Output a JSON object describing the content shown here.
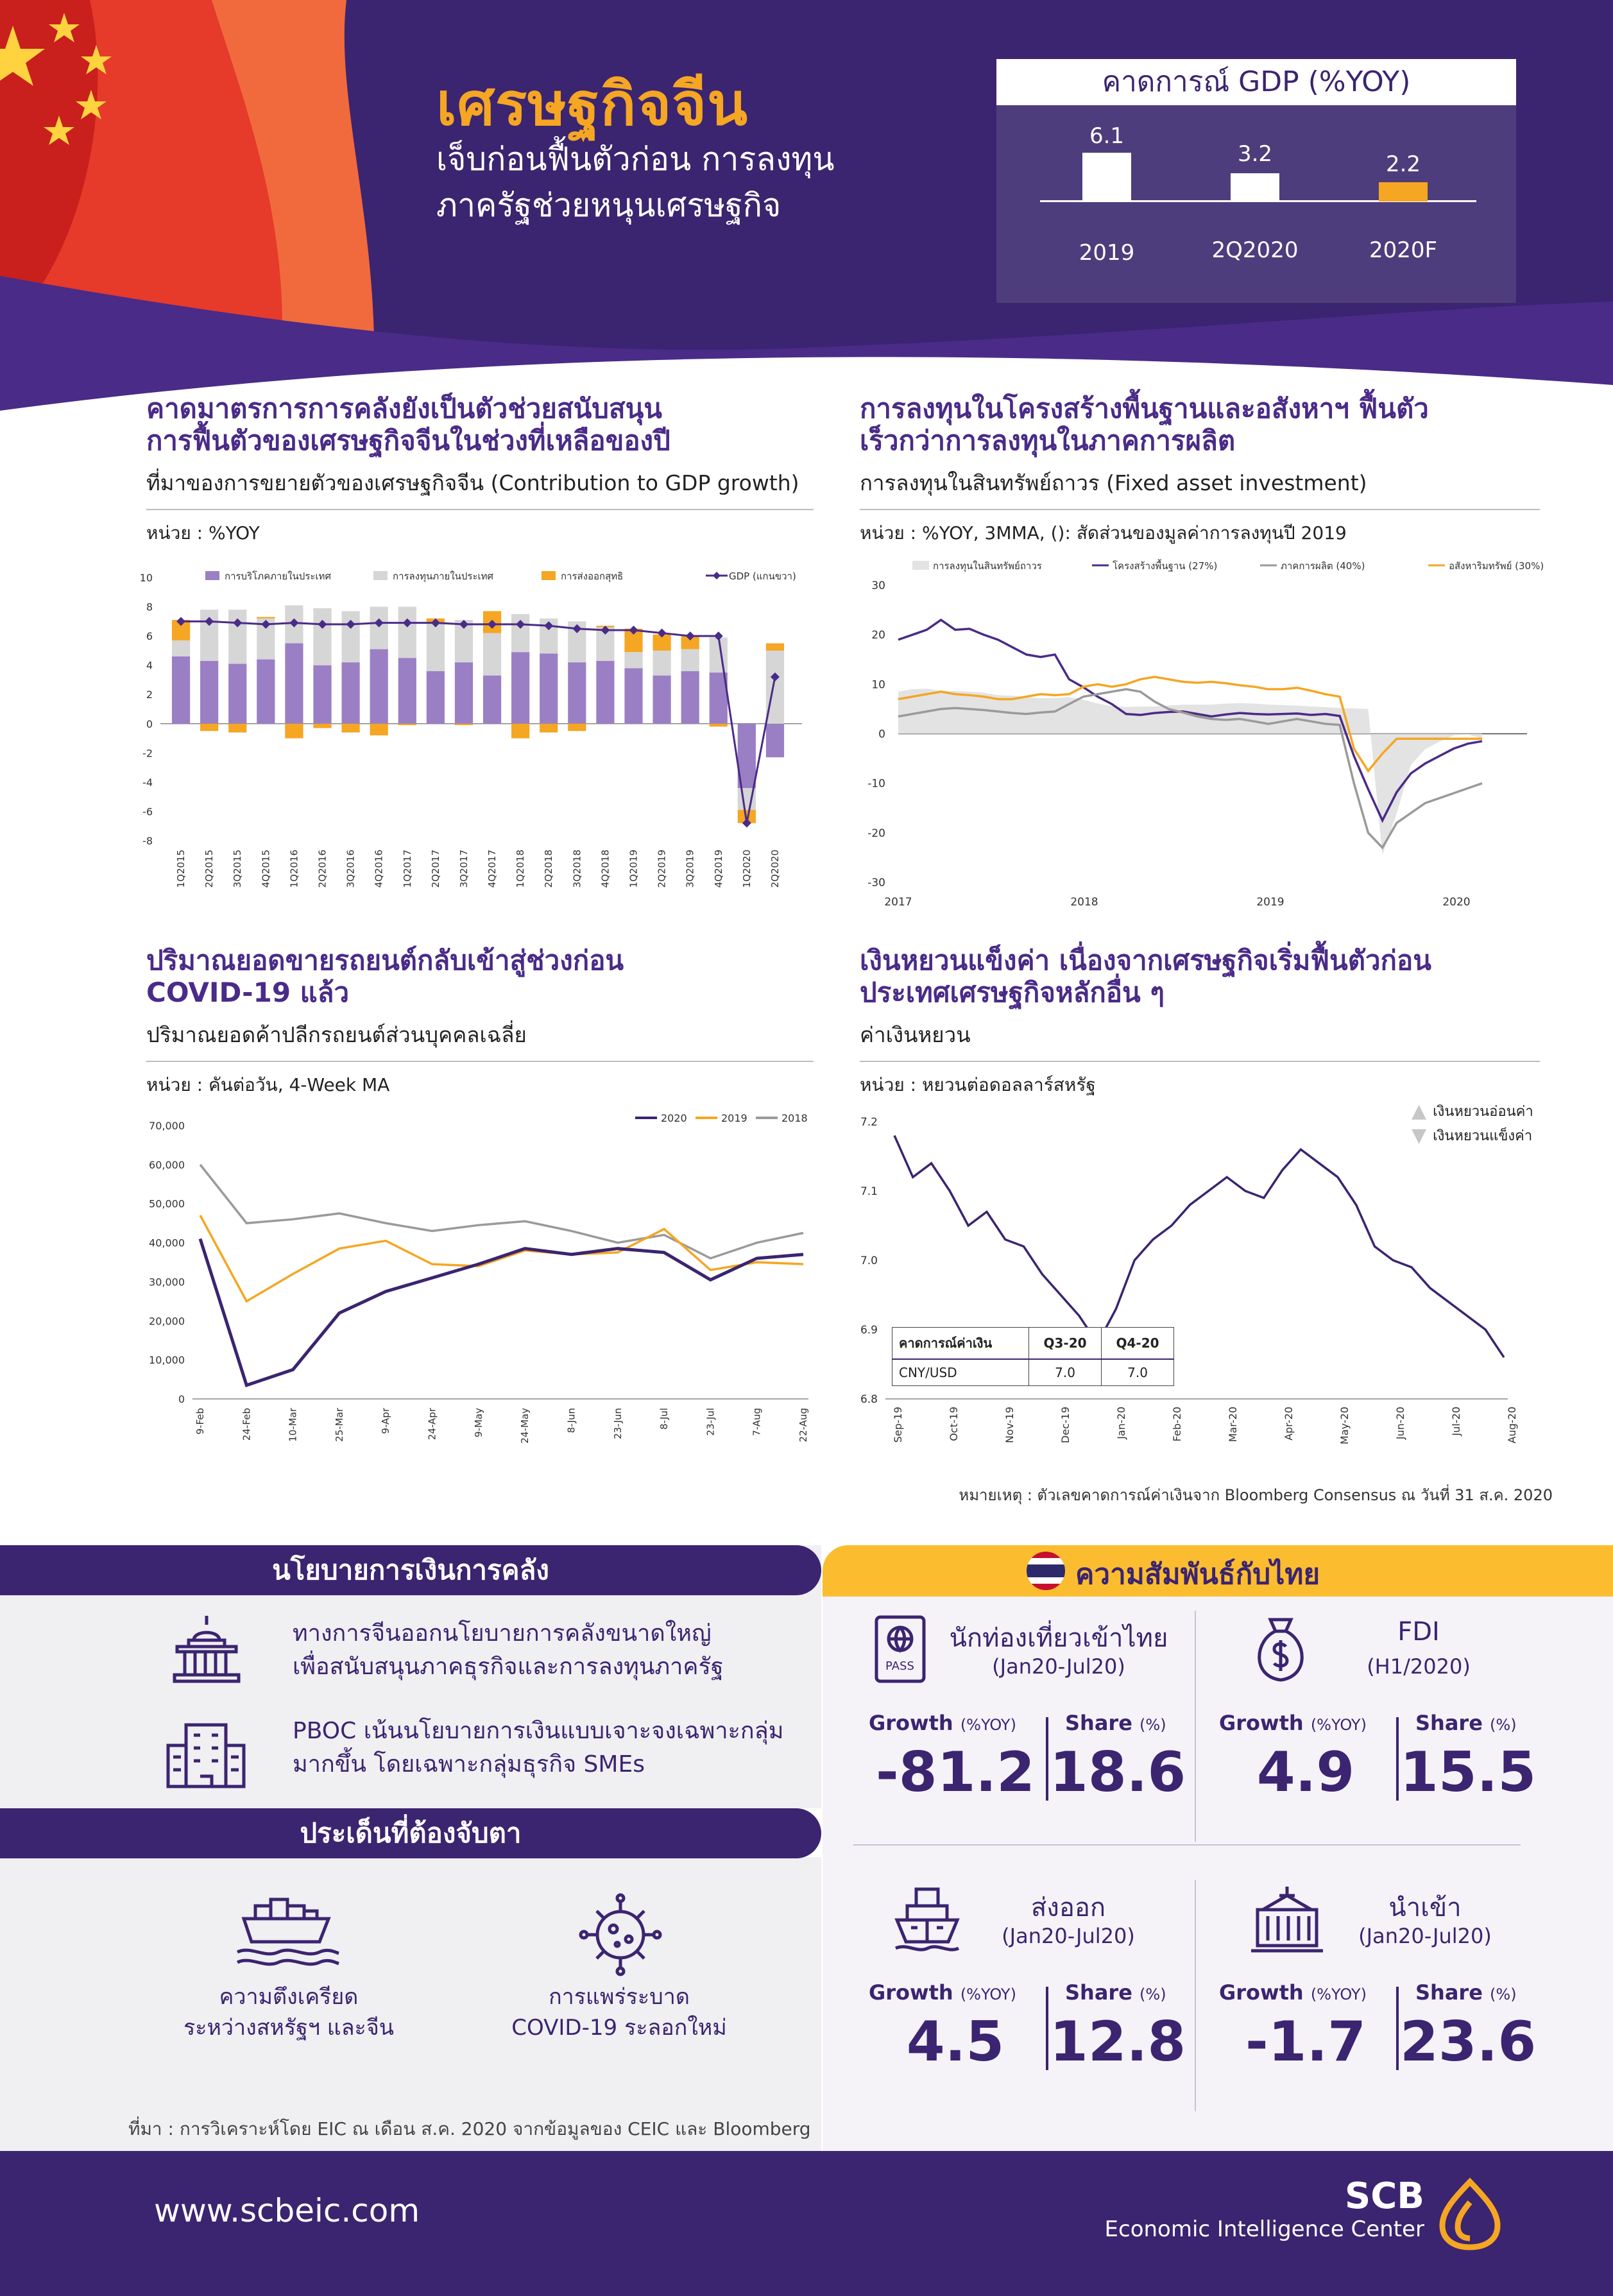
{
  "header": {
    "title": "เศรษฐกิจจีน",
    "subtitle_line1": "เจ็บก่อนฟื้นตัวก่อน การลงทุน",
    "subtitle_line2": "ภาครัฐช่วยหนุนเศรษฐกิจ",
    "gdp_box": {
      "title": "คาดการณ์ GDP (%YOY)",
      "items": [
        {
          "label": "2019",
          "value": "6.1"
        },
        {
          "label": "2Q2020",
          "value": "3.2"
        },
        {
          "label": "2020F",
          "value": "2.2"
        }
      ]
    }
  },
  "sections": {
    "fiscal": {
      "title_line1": "คาดมาตรการการคลังยังเป็นตัวช่วยสนับสนุน",
      "title_line2": "การฟื้นตัวของเศรษฐกิจจีนในช่วงที่เหลือของปี",
      "subtitle": "ที่มาของการขยายตัวของเศรษฐกิจจีน (Contribution to GDP growth)",
      "unit": "หน่วย : %YOY"
    },
    "investment": {
      "title_line1": "การลงทุนในโครงสร้างพื้นฐานและอสังหาฯ ฟื้นตัว",
      "title_line2": "เร็วกว่าการลงทุนในภาคการผลิต",
      "subtitle": "การลงทุนในสินทรัพย์ถาวร (Fixed asset investment)",
      "unit": "หน่วย : %YOY, 3MMA, (): สัดส่วนของมูลค่าการลงทุนปี 2019"
    },
    "auto": {
      "title_line1": "ปริมาณยอดขายรถยนต์กลับเข้าสู่ช่วงก่อน",
      "title_line2": "COVID-19 แล้ว",
      "subtitle": "ปริมาณยอดค้าปลีกรถยนต์ส่วนบุคคลเฉลี่ย",
      "unit": "หน่วย : คันต่อวัน, 4-Week MA"
    },
    "yuan": {
      "title_line1": "เงินหยวนแข็งค่า เนื่องจากเศรษฐกิจเริ่มฟื้นตัวก่อน",
      "title_line2": "ประเทศเศรษฐกิจหลักอื่น ๆ",
      "subtitle": "ค่าเงินหยวน",
      "unit": "หน่วย : หยวนต่อดอลลาร์สหรัฐ",
      "note": "หมายเหตุ : ตัวเลขคาดการณ์ค่าเงินจาก Bloomberg Consensus ณ วันที่ 31 ส.ค. 2020",
      "legend_weak": "เงินหยวนอ่อนค่า",
      "legend_strong": "เงินหยวนแข็งค่า",
      "forecast_table": {
        "headers": [
          "คาดการณ์ค่าเงิน",
          "Q3-20",
          "Q4-20"
        ],
        "row": [
          "CNY/USD",
          "7.0",
          "7.0"
        ]
      }
    }
  },
  "chart_data": [
    {
      "type": "bar",
      "stacked": true,
      "categories": [
        "1Q2015",
        "2Q2015",
        "3Q2015",
        "4Q2015",
        "1Q2016",
        "2Q2016",
        "3Q2016",
        "4Q2016",
        "1Q2017",
        "2Q2017",
        "3Q2017",
        "4Q2017",
        "1Q2018",
        "2Q2018",
        "3Q2018",
        "4Q2018",
        "1Q2019",
        "2Q2019",
        "3Q2019",
        "4Q2019",
        "1Q2020",
        "2Q2020"
      ],
      "series": [
        {
          "name": "การบริโภคภายในประเทศ",
          "kind": "bar",
          "color": "#9b7fc4",
          "values": [
            4.6,
            4.3,
            4.1,
            4.4,
            5.5,
            4.0,
            4.2,
            5.1,
            4.5,
            3.6,
            4.2,
            3.3,
            4.9,
            4.8,
            4.2,
            4.3,
            3.8,
            3.3,
            3.6,
            3.5,
            -4.4,
            -2.3
          ]
        },
        {
          "name": "การลงทุนภายในประเทศ",
          "kind": "bar",
          "color": "#d6d6d6",
          "values": [
            1.1,
            3.5,
            3.7,
            2.8,
            2.6,
            3.9,
            3.5,
            2.9,
            3.5,
            3.3,
            2.9,
            2.9,
            2.6,
            2.4,
            2.8,
            2.3,
            1.1,
            1.7,
            1.5,
            2.4,
            -1.5,
            5.0
          ]
        },
        {
          "name": "การส่งออกสุทธิ",
          "kind": "bar",
          "color": "#f5a623",
          "values": [
            1.4,
            -0.5,
            -0.6,
            0.1,
            -1.0,
            -0.3,
            -0.6,
            -0.8,
            -0.1,
            0.3,
            -0.1,
            1.5,
            -1.0,
            -0.6,
            -0.5,
            0.1,
            1.6,
            1.1,
            0.9,
            -0.2,
            -0.9,
            0.5
          ]
        },
        {
          "name": "GDP (แกนขวา)",
          "kind": "line",
          "color": "#4a2b88",
          "values": [
            7.0,
            7.0,
            6.9,
            6.8,
            6.9,
            6.8,
            6.8,
            6.9,
            6.9,
            6.9,
            6.8,
            6.8,
            6.8,
            6.7,
            6.5,
            6.4,
            6.4,
            6.2,
            6.0,
            6.0,
            -6.8,
            3.2
          ]
        }
      ],
      "ylim": [
        -8,
        10
      ],
      "yticks": [
        -8,
        -6,
        -4,
        -2,
        0,
        2,
        4,
        6,
        8,
        10
      ],
      "legend": "top"
    },
    {
      "type": "line",
      "xlabels": [
        "2017",
        "2018",
        "2019",
        "2020"
      ],
      "x_start": "2017-01",
      "series": [
        {
          "name": "การลงทุนในสินทรัพย์ถาวร",
          "kind": "area",
          "color": "#e3e3e3",
          "values": [
            8.5,
            9.0,
            9.1,
            8.7,
            8.6,
            8.5,
            8.3,
            7.8,
            7.7,
            7.4,
            7.2,
            7.2,
            7.4,
            6.9,
            6.1,
            5.6,
            5.4,
            5.5,
            5.5,
            5.7,
            5.9,
            5.9,
            5.9,
            6.1,
            6.2,
            6.1,
            5.9,
            5.8,
            5.7,
            5.5,
            5.4,
            5.2,
            5.1,
            5.0,
            -24.5,
            -16.1,
            -6.3,
            -3.1,
            -1.6,
            -0.3,
            -0.1,
            -1.0
          ]
        },
        {
          "name": "โครงสร้างพื้นฐาน (27%)",
          "kind": "line",
          "color": "#4a2b88",
          "values": [
            19.0,
            20.0,
            21.0,
            23.0,
            21.0,
            21.2,
            20.0,
            19.0,
            17.5,
            16.0,
            15.5,
            16.0,
            11.0,
            9.4,
            7.5,
            6.0,
            4.0,
            3.8,
            4.2,
            4.4,
            4.5,
            4.0,
            3.5,
            3.9,
            4.2,
            4.0,
            3.9,
            4.0,
            4.1,
            3.8,
            4.0,
            3.6,
            -4.5,
            -11.2,
            -17.5,
            -11.8,
            -8.0,
            -6.0,
            -4.5,
            -3.0,
            -2.0,
            -1.5
          ]
        },
        {
          "name": "ภาคการผลิต (40%)",
          "kind": "line",
          "color": "#9a9a9a",
          "values": [
            3.5,
            4.0,
            4.5,
            5.0,
            5.2,
            5.0,
            4.8,
            4.5,
            4.2,
            4.0,
            4.3,
            4.5,
            6.0,
            7.5,
            8.0,
            8.5,
            9.0,
            8.5,
            6.5,
            5.0,
            4.3,
            3.5,
            3.0,
            2.8,
            3.0,
            2.5,
            2.0,
            2.5,
            3.0,
            2.5,
            2.0,
            1.8,
            -10.0,
            -20.0,
            -23.0,
            -18.0,
            -16.0,
            -14.0,
            -13.0,
            -12.0,
            -11.0,
            -10.0
          ]
        },
        {
          "name": "อสังหาริมทรัพย์ (30%)",
          "kind": "line",
          "color": "#f5a623",
          "values": [
            7.0,
            7.5,
            8.0,
            8.5,
            8.0,
            7.8,
            7.5,
            7.0,
            7.0,
            7.5,
            8.0,
            7.8,
            8.0,
            9.5,
            10.0,
            9.5,
            10.0,
            11.0,
            11.5,
            11.0,
            10.5,
            10.3,
            10.5,
            10.2,
            9.8,
            9.5,
            9.0,
            9.0,
            9.3,
            8.7,
            8.0,
            7.5,
            -3.0,
            -7.5,
            -4.0,
            -1.0,
            -1.0,
            -1.0,
            -1.0,
            -1.0,
            -1.0,
            -1.0
          ]
        }
      ],
      "ylim": [
        -30,
        30
      ],
      "yticks": [
        -30,
        -20,
        -10,
        0,
        10,
        20,
        30
      ],
      "legend": "top"
    },
    {
      "type": "line",
      "categories": [
        "9-Feb",
        "24-Feb",
        "10-Mar",
        "25-Mar",
        "9-Apr",
        "24-Apr",
        "9-May",
        "24-May",
        "8-Jun",
        "23-Jun",
        "8-Jul",
        "23-Jul",
        "7-Aug",
        "22-Aug"
      ],
      "series": [
        {
          "name": "2020",
          "color": "#3b2470",
          "values": [
            41000,
            3500,
            7500,
            22000,
            27500,
            31000,
            34500,
            38500,
            37000,
            38500,
            37500,
            30500,
            36000,
            37000
          ]
        },
        {
          "name": "2019",
          "color": "#f5a623",
          "values": [
            47000,
            25000,
            32000,
            38500,
            40500,
            34500,
            34000,
            38000,
            37000,
            37500,
            43500,
            33000,
            35000,
            34500
          ]
        },
        {
          "name": "2018",
          "color": "#9a9a9a",
          "values": [
            60000,
            45000,
            46000,
            47500,
            45000,
            43000,
            44500,
            45500,
            43000,
            40000,
            42000,
            36000,
            40000,
            42500
          ]
        }
      ],
      "ylim": [
        0,
        70000
      ],
      "yticks": [
        "0",
        "10,000",
        "20,000",
        "30,000",
        "40,000",
        "50,000",
        "60,000",
        "70,000"
      ],
      "legend": "top-right"
    },
    {
      "type": "line",
      "xlabels": [
        "Sep-19",
        "Oct-19",
        "Nov-19",
        "Dec-19",
        "Jan-20",
        "Feb-20",
        "Mar-20",
        "Apr-20",
        "May-20",
        "Jun-20",
        "Jul-20",
        "Aug-20"
      ],
      "series": [
        {
          "name": "CNY/USD",
          "color": "#3b2470",
          "values": [
            7.18,
            7.12,
            7.14,
            7.1,
            7.05,
            7.07,
            7.03,
            7.02,
            6.98,
            6.95,
            6.92,
            6.88,
            6.93,
            7.0,
            7.03,
            7.05,
            7.08,
            7.1,
            7.12,
            7.1,
            7.09,
            7.13,
            7.16,
            7.14,
            7.12,
            7.08,
            7.02,
            7.0,
            6.99,
            6.96,
            6.94,
            6.92,
            6.9,
            6.86
          ]
        }
      ],
      "ylim": [
        6.8,
        7.2
      ],
      "yticks": [
        "6.8",
        "6.9",
        "7.0",
        "7.1",
        "7.2"
      ]
    }
  ],
  "bottom": {
    "policy": {
      "title": "นโยบายการเงินการคลัง",
      "items": [
        {
          "icon": "government-building-icon",
          "line1": "ทางการจีนออกนโยบายการคลังขนาดใหญ่",
          "line2": "เพื่อสนับสนุนภาคธุรกิจและการลงทุนภาครัฐ"
        },
        {
          "icon": "office-building-icon",
          "line1": "PBOC เน้นนโยบายการเงินแบบเจาะจงเฉพาะกลุ่ม",
          "line2": "มากขึ้น โดยเฉพาะกลุ่มธุรกิจ SMEs"
        }
      ]
    },
    "watch": {
      "title": "ประเด็นที่ต้องจับตา",
      "items": [
        {
          "icon": "cargo-ship-icon",
          "line1": "ความตึงเครียด",
          "line2": "ระหว่างสหรัฐฯ และจีน"
        },
        {
          "icon": "virus-icon",
          "line1": "การแพร่ระบาด",
          "line2": "COVID-19 ระลอกใหม่"
        }
      ]
    },
    "thai": {
      "title": "ความสัมพันธ์กับไทย",
      "growth_label": "Growth",
      "growth_unit": "(%YOY)",
      "share_label": "Share",
      "share_unit": "(%)",
      "cards": [
        {
          "icon": "passport-icon",
          "title": "นักท่องเที่ยวเข้าไทย",
          "period": "(Jan20-Jul20)",
          "growth": "-81.2",
          "share": "18.6"
        },
        {
          "icon": "money-bag-icon",
          "title": "FDI",
          "period": "(H1/2020)",
          "growth": "4.9",
          "share": "15.5"
        },
        {
          "icon": "export-ship-icon",
          "title": "ส่งออก",
          "period": "(Jan20-Jul20)",
          "growth": "4.5",
          "share": "12.8"
        },
        {
          "icon": "import-container-icon",
          "title": "นำเข้า",
          "period": "(Jan20-Jul20)",
          "growth": "-1.7",
          "share": "23.6"
        }
      ]
    },
    "source": "ที่มา : การวิเคราะห์โดย EIC ณ เดือน ส.ค. 2020 จากข้อมูลของ CEIC และ Bloomberg"
  },
  "footer": {
    "url": "www.scbeic.com",
    "brand": "SCB",
    "brand_sub": "Economic Intelligence Center"
  }
}
